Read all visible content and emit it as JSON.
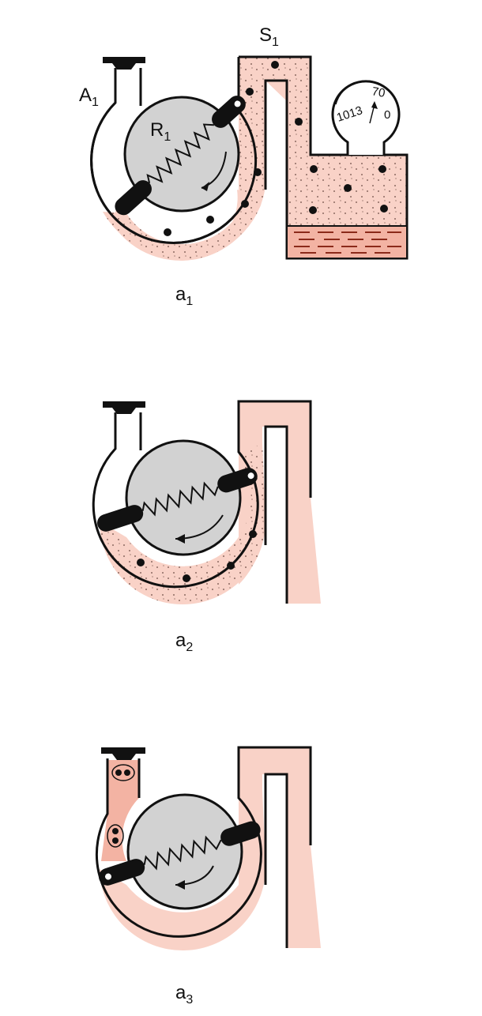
{
  "colors": {
    "fill": "#f9d2c7",
    "fill_dark": "#f3b3a3",
    "rotor": "#d2d2d2",
    "line": "#111111",
    "oil_lines": "#8b2a1a",
    "background": "#ffffff"
  },
  "labels": {
    "a1": {
      "base": "A",
      "sub": "1"
    },
    "s1": {
      "base": "S",
      "sub": "1"
    },
    "r1": {
      "base": "R",
      "sub": "1"
    },
    "stage1": {
      "base": "a",
      "sub": "1"
    },
    "stage2": {
      "base": "a",
      "sub": "2"
    },
    "stage3": {
      "base": "a",
      "sub": "3"
    }
  },
  "gauge": {
    "scale_left": "1013",
    "scale_top": "70",
    "scale_right": "0"
  },
  "icons": {
    "stopper": "stopper-icon",
    "vane": "vane-icon",
    "spring": "spring-icon",
    "rotation": "rotation-arrow-icon",
    "gauge": "pressure-gauge-icon",
    "particle": "gas-particle-icon"
  }
}
